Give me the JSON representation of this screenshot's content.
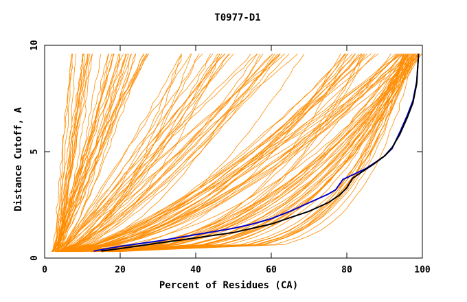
{
  "chart_data": {
    "type": "line",
    "title": "T0977-D1",
    "xlabel": "Percent of Residues (CA)",
    "ylabel": "Distance Cutoff, A",
    "xlim": [
      0,
      100
    ],
    "ylim": [
      0,
      10
    ],
    "x_ticks": [
      "0",
      "20",
      "40",
      "60",
      "80",
      "100"
    ],
    "y_ticks": [
      "0",
      "5",
      "10"
    ],
    "colors": {
      "background_models": "#ff8c00",
      "blue": "#0000cc",
      "black": "#000000"
    },
    "series": [
      {
        "name": "blue-highlight",
        "color": "#0000cc",
        "points": [
          [
            13,
            0.33
          ],
          [
            20,
            0.55
          ],
          [
            30,
            0.8
          ],
          [
            40,
            1.1
          ],
          [
            50,
            1.4
          ],
          [
            55,
            1.6
          ],
          [
            60,
            1.85
          ],
          [
            65,
            2.2
          ],
          [
            70,
            2.6
          ],
          [
            75,
            3.0
          ],
          [
            77,
            3.2
          ],
          [
            79,
            3.7
          ],
          [
            82,
            3.95
          ],
          [
            85,
            4.2
          ],
          [
            88,
            4.55
          ],
          [
            90,
            4.8
          ],
          [
            92,
            5.15
          ],
          [
            94,
            5.9
          ],
          [
            96,
            6.7
          ],
          [
            97.5,
            7.4
          ],
          [
            98.5,
            8.3
          ],
          [
            99,
            9.6
          ]
        ]
      },
      {
        "name": "black-highlight",
        "color": "#000000",
        "points": [
          [
            15,
            0.33
          ],
          [
            20,
            0.45
          ],
          [
            30,
            0.7
          ],
          [
            40,
            0.95
          ],
          [
            50,
            1.2
          ],
          [
            55,
            1.4
          ],
          [
            60,
            1.6
          ],
          [
            65,
            1.9
          ],
          [
            70,
            2.2
          ],
          [
            75,
            2.6
          ],
          [
            78,
            2.95
          ],
          [
            80,
            3.3
          ],
          [
            81.5,
            3.75
          ],
          [
            84,
            4.05
          ],
          [
            87,
            4.4
          ],
          [
            90,
            4.8
          ],
          [
            92,
            5.2
          ],
          [
            94,
            5.8
          ],
          [
            96,
            6.6
          ],
          [
            97.5,
            7.3
          ],
          [
            98.5,
            8.2
          ],
          [
            99,
            9.6
          ]
        ]
      }
    ],
    "background_models": {
      "count": 150,
      "color": "#ff8c00",
      "ensemble": [
        {
          "group": "steep",
          "n": 40,
          "x_at_0.3": [
            2,
            4
          ],
          "x_at_9.6": [
            7,
            28
          ]
        },
        {
          "group": "medium",
          "n": 35,
          "x_at_0.3": [
            3,
            5
          ],
          "x_at_9.6": [
            35,
            72
          ]
        },
        {
          "group": "broad",
          "n": 40,
          "x_at_0.3": [
            3,
            8
          ],
          "x_at_9.6": [
            78,
            100
          ]
        },
        {
          "group": "top-band",
          "n": 35,
          "x_at_0.3": [
            8,
            20
          ],
          "x_at_9.6": [
            95,
            100
          ]
        }
      ]
    }
  }
}
